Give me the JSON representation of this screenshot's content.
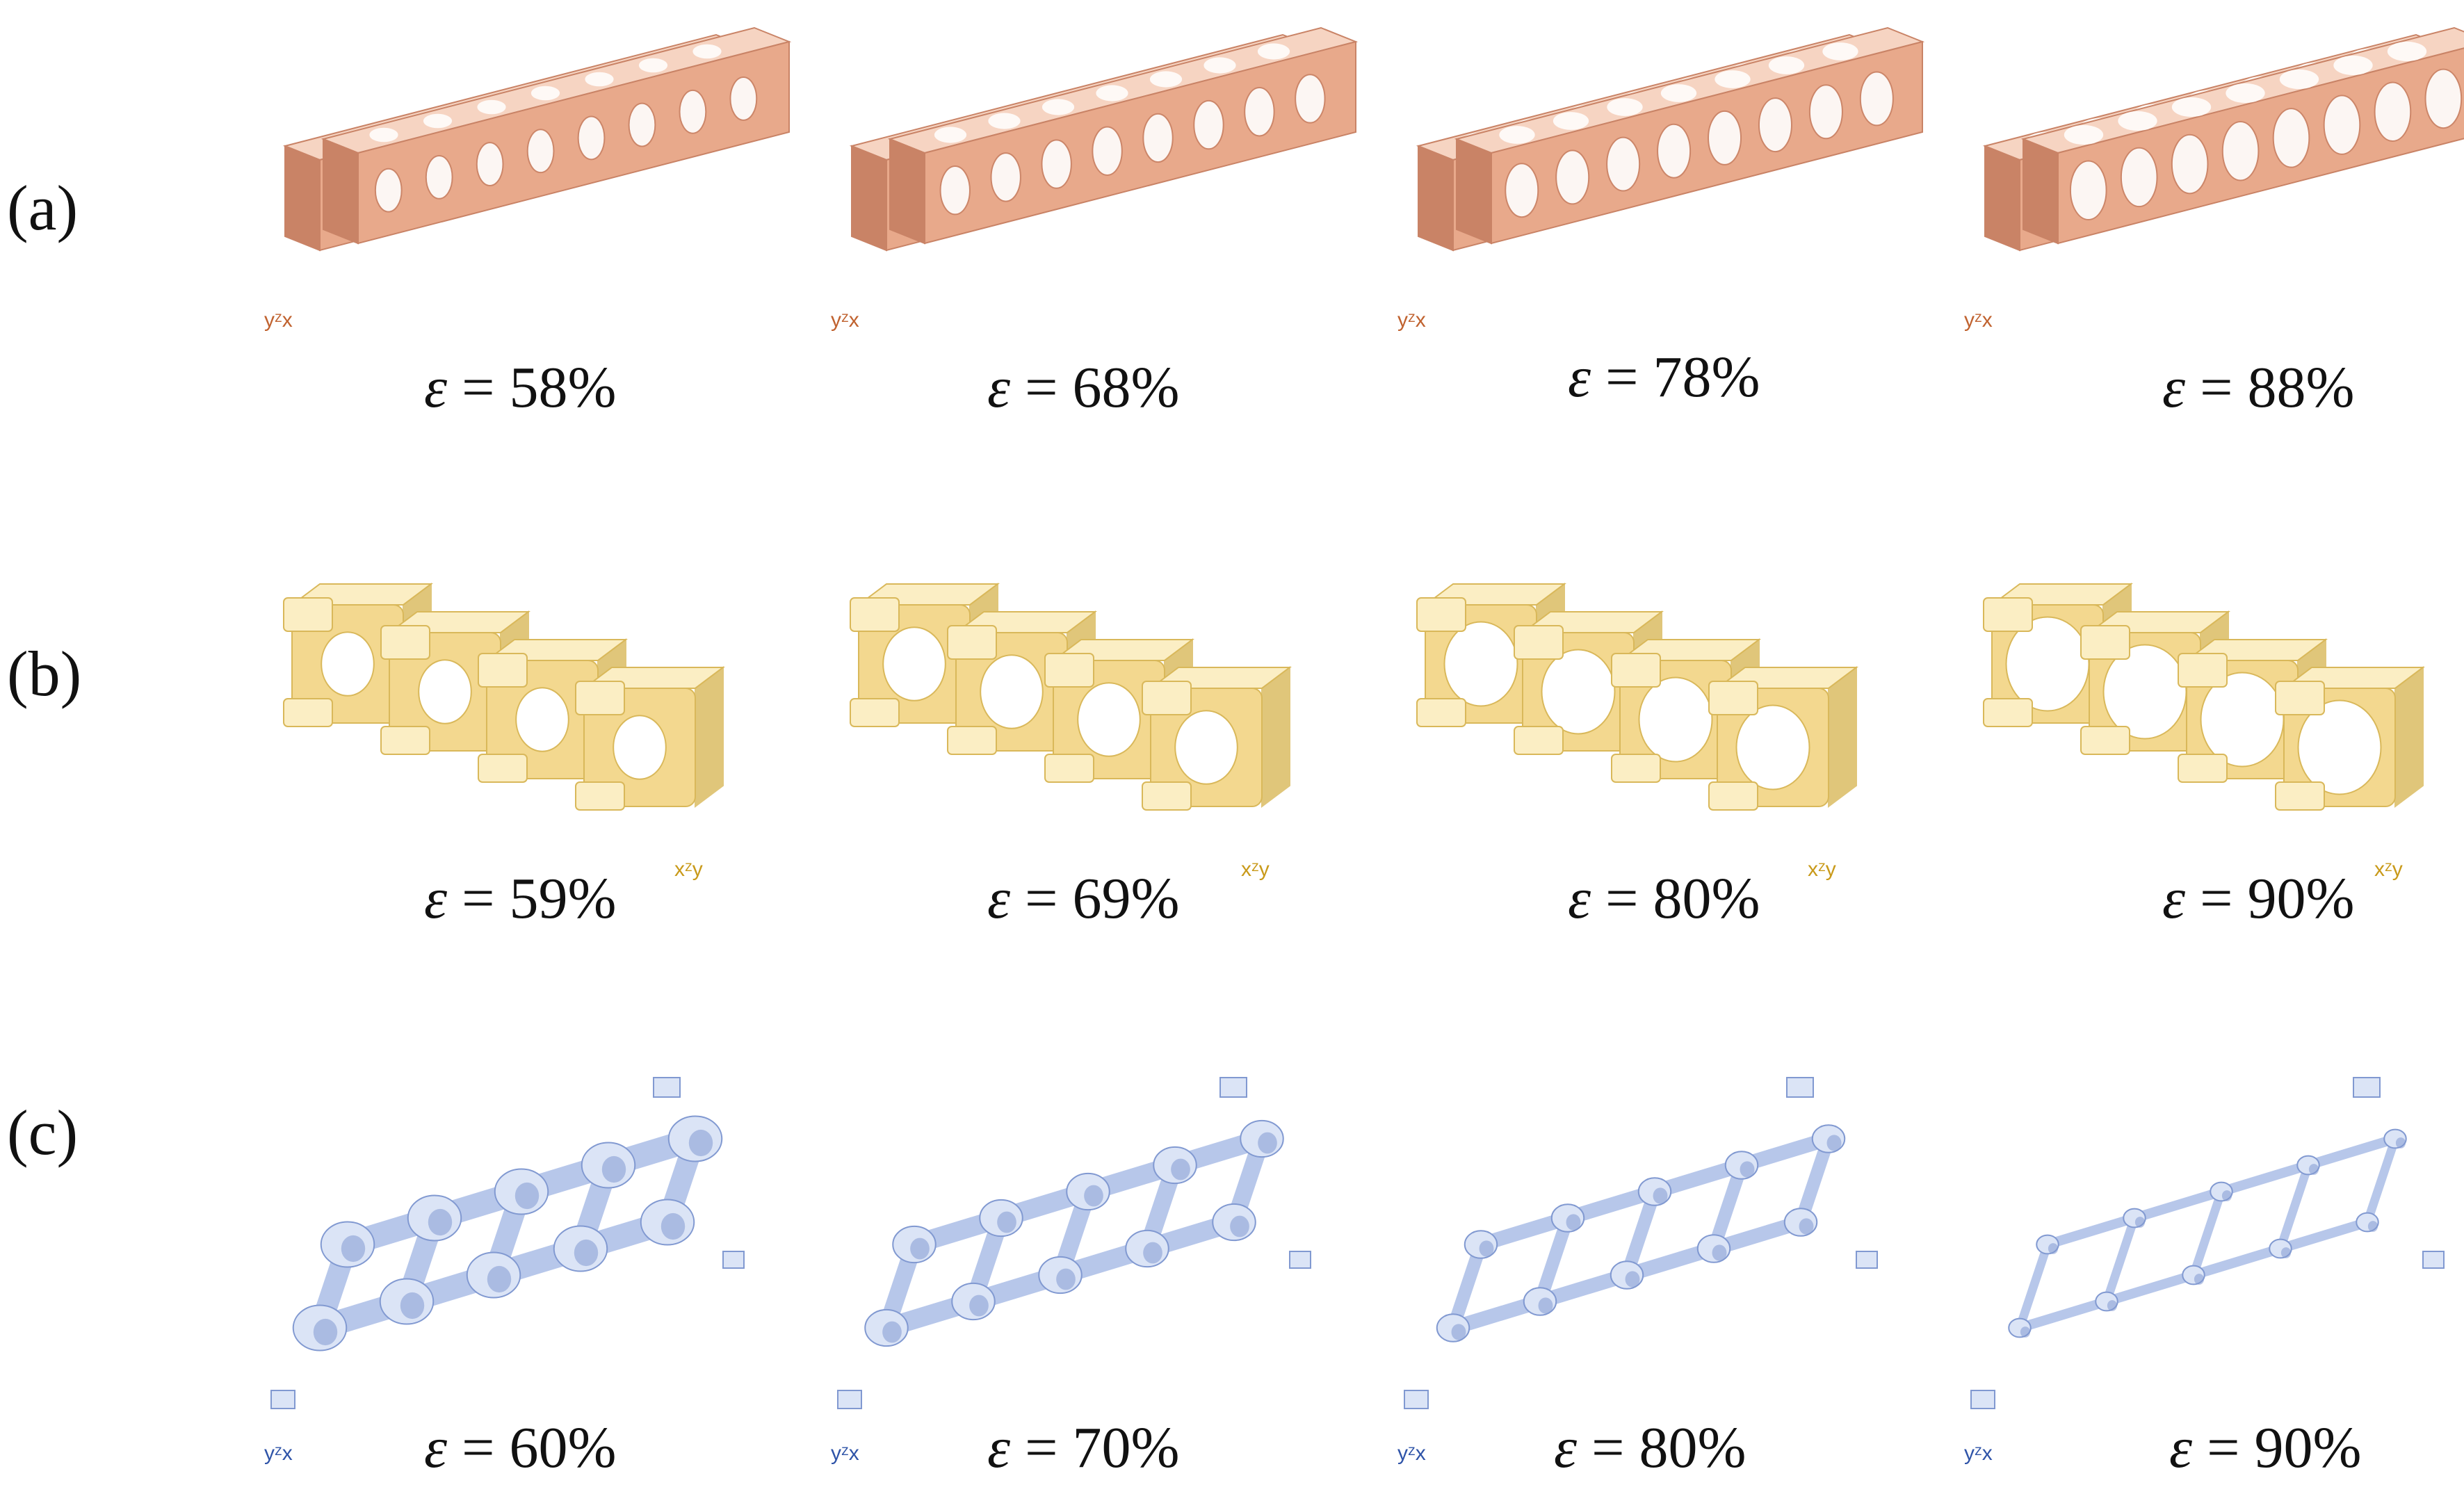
{
  "rows": [
    {
      "label": "(a)",
      "color": "#e8a98b",
      "color_dark": "#c98366",
      "color_light": "#f6d4c2",
      "axis_color": "#c0622f",
      "axis_text": "yᶻx",
      "structure": "tube-truss",
      "panels": [
        {
          "eps_symbol": "ε",
          "caption": " = 58%",
          "porosity": 58
        },
        {
          "eps_symbol": "ε",
          "caption": " = 68%",
          "porosity": 68
        },
        {
          "eps_symbol": "ε",
          "caption": " = 78%",
          "porosity": 78
        },
        {
          "eps_symbol": "ε",
          "caption": " = 88%",
          "porosity": 88
        }
      ]
    },
    {
      "label": "(b)",
      "color": "#f3d88f",
      "color_dark": "#d9b85a",
      "color_light": "#fbeec4",
      "axis_color": "#c99a1a",
      "axis_text": "xᶻy",
      "structure": "cubic-lattice",
      "panels": [
        {
          "eps_symbol": "ε",
          "caption": " = 59%",
          "porosity": 59
        },
        {
          "eps_symbol": "ε",
          "caption": " = 69%",
          "porosity": 69
        },
        {
          "eps_symbol": "ε",
          "caption": " = 80%",
          "porosity": 80
        },
        {
          "eps_symbol": "ε",
          "caption": " = 90%",
          "porosity": 90
        }
      ]
    },
    {
      "label": "(c)",
      "color": "#b7c7ea",
      "color_dark": "#8199d1",
      "color_light": "#dbe4f6",
      "axis_color": "#2f54a8",
      "axis_text": "yᶻx",
      "structure": "gyroid-lattice",
      "panels": [
        {
          "eps_symbol": "ε",
          "caption": " = 60%",
          "porosity": 60
        },
        {
          "eps_symbol": "ε",
          "caption": " = 70%",
          "porosity": 70
        },
        {
          "eps_symbol": "ε",
          "caption": " = 80%",
          "porosity": 80
        },
        {
          "eps_symbol": "ε",
          "caption": " = 90%",
          "porosity": 90
        }
      ]
    }
  ]
}
